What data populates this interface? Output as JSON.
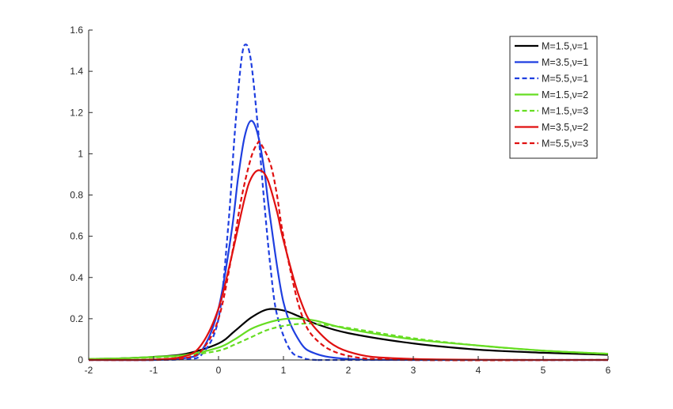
{
  "chart_data": {
    "type": "line",
    "title": "",
    "xlabel": "",
    "ylabel": "",
    "xlim": [
      -2,
      6
    ],
    "ylim": [
      0,
      1.6
    ],
    "xticks": [
      "-2",
      "-1",
      "0",
      "1",
      "2",
      "3",
      "4",
      "5",
      "6"
    ],
    "yticks": [
      "0",
      "0.2",
      "0.4",
      "0.6",
      "0.8",
      "1",
      "1.2",
      "1.4",
      "1.6"
    ],
    "grid": false,
    "legend_position": "top-right",
    "series": [
      {
        "name": "M=1.5,ν=1",
        "color": "#000000",
        "style": "solid",
        "x": [
          -2,
          -1.5,
          -1,
          -0.5,
          0,
          0.25,
          0.5,
          0.75,
          1,
          1.25,
          1.5,
          2,
          3,
          4,
          5,
          6
        ],
        "y": [
          0.005,
          0.008,
          0.015,
          0.03,
          0.08,
          0.14,
          0.205,
          0.245,
          0.24,
          0.21,
          0.175,
          0.13,
          0.08,
          0.05,
          0.035,
          0.025
        ]
      },
      {
        "name": "M=3.5,ν=1",
        "color": "#1f3fe0",
        "style": "solid",
        "x": [
          -2,
          -1,
          -0.5,
          -0.25,
          0,
          0.2,
          0.3,
          0.4,
          0.5,
          0.6,
          0.7,
          0.8,
          1,
          1.25,
          1.5,
          2,
          3,
          6
        ],
        "y": [
          0,
          0,
          0.01,
          0.05,
          0.25,
          0.62,
          0.88,
          1.08,
          1.16,
          1.1,
          0.93,
          0.68,
          0.28,
          0.09,
          0.03,
          0.005,
          0,
          0
        ]
      },
      {
        "name": "M=5.5,ν=1",
        "color": "#1f3fe0",
        "style": "dashed",
        "x": [
          -2,
          -1,
          -0.5,
          -0.25,
          0,
          0.15,
          0.25,
          0.35,
          0.42,
          0.5,
          0.6,
          0.7,
          0.8,
          0.9,
          1.1,
          1.3,
          1.5,
          2,
          6
        ],
        "y": [
          0,
          0,
          0.005,
          0.03,
          0.2,
          0.65,
          1.1,
          1.45,
          1.53,
          1.45,
          1.15,
          0.78,
          0.45,
          0.22,
          0.05,
          0.01,
          0,
          0,
          0
        ]
      },
      {
        "name": "M=1.5,ν=2",
        "color": "#66dd22",
        "style": "solid",
        "x": [
          -2,
          -1.5,
          -1,
          -0.5,
          0,
          0.25,
          0.5,
          0.75,
          1,
          1.25,
          1.5,
          2,
          3,
          4,
          5,
          6
        ],
        "y": [
          0.005,
          0.008,
          0.015,
          0.025,
          0.06,
          0.1,
          0.15,
          0.18,
          0.198,
          0.2,
          0.19,
          0.15,
          0.1,
          0.07,
          0.045,
          0.03
        ]
      },
      {
        "name": "M=1.5,ν=3",
        "color": "#66dd22",
        "style": "dashed",
        "x": [
          -2,
          -1.5,
          -1,
          -0.5,
          0,
          0.25,
          0.5,
          0.75,
          1,
          1.25,
          1.5,
          2,
          3,
          4,
          5,
          6
        ],
        "y": [
          0.005,
          0.008,
          0.012,
          0.022,
          0.045,
          0.075,
          0.11,
          0.145,
          0.165,
          0.175,
          0.175,
          0.155,
          0.105,
          0.07,
          0.045,
          0.03
        ]
      },
      {
        "name": "M=3.5,ν=2",
        "color": "#e01010",
        "style": "solid",
        "x": [
          -2,
          -1,
          -0.5,
          -0.25,
          0,
          0.2,
          0.4,
          0.5,
          0.62,
          0.75,
          0.9,
          1,
          1.25,
          1.5,
          2,
          3,
          6
        ],
        "y": [
          0,
          0.002,
          0.02,
          0.08,
          0.25,
          0.5,
          0.78,
          0.88,
          0.92,
          0.88,
          0.72,
          0.58,
          0.3,
          0.15,
          0.04,
          0.005,
          0
        ]
      },
      {
        "name": "M=5.5,ν=3",
        "color": "#e01010",
        "style": "dashed",
        "x": [
          -2,
          -1,
          -0.5,
          -0.25,
          0,
          0.2,
          0.35,
          0.5,
          0.6,
          0.65,
          0.8,
          0.9,
          1,
          1.25,
          1.5,
          2,
          3,
          6
        ],
        "y": [
          0,
          0,
          0.01,
          0.05,
          0.2,
          0.5,
          0.78,
          0.98,
          1.05,
          1.05,
          0.95,
          0.8,
          0.6,
          0.25,
          0.1,
          0.02,
          0,
          0
        ]
      }
    ]
  }
}
